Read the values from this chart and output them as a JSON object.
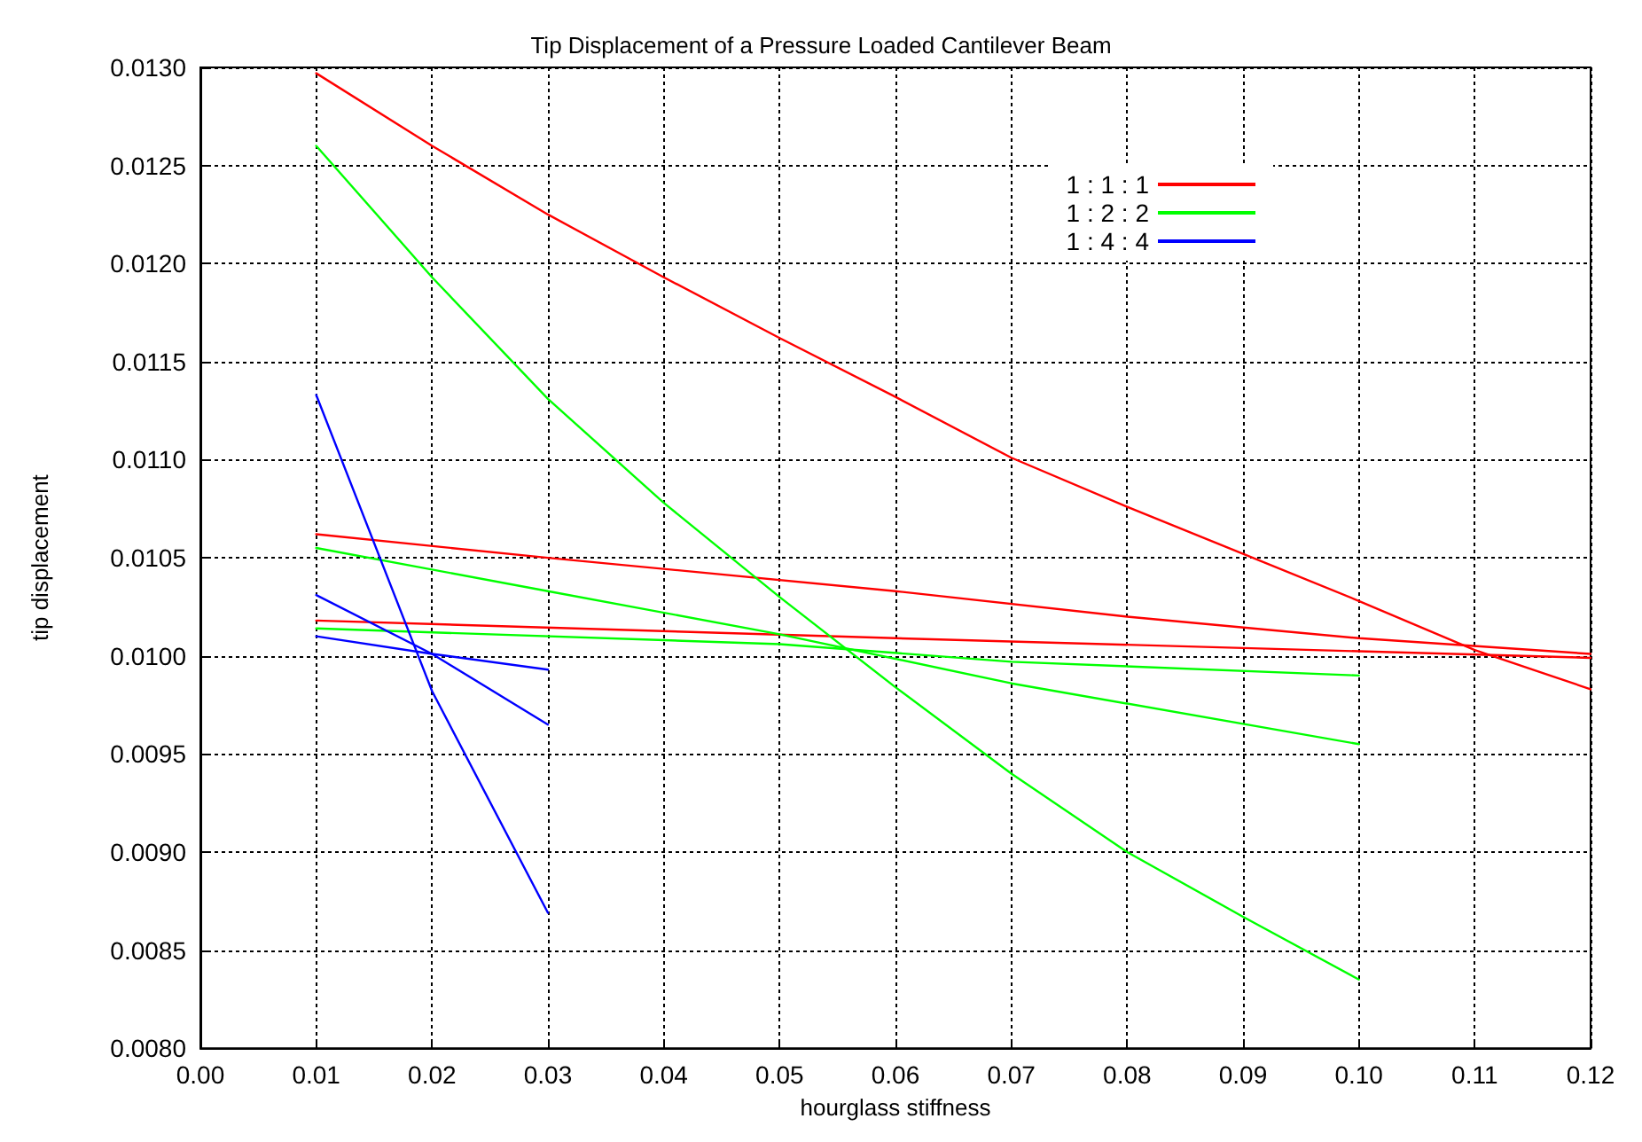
{
  "chart_data": {
    "type": "line",
    "title": "Tip Displacement of a Pressure Loaded Cantilever Beam",
    "xlabel": "hourglass stiffness",
    "ylabel": "tip displacement",
    "xlim": [
      0,
      0.12
    ],
    "ylim": [
      0.008,
      0.013
    ],
    "xticks": [
      {
        "value": 0,
        "label": "0.00"
      },
      {
        "value": 0.01,
        "label": "0.01"
      },
      {
        "value": 0.02,
        "label": "0.02"
      },
      {
        "value": 0.03,
        "label": "0.03"
      },
      {
        "value": 0.04,
        "label": "0.04"
      },
      {
        "value": 0.05,
        "label": "0.05"
      },
      {
        "value": 0.06,
        "label": "0.06"
      },
      {
        "value": 0.07,
        "label": "0.07"
      },
      {
        "value": 0.08,
        "label": "0.08"
      },
      {
        "value": 0.09,
        "label": "0.09"
      },
      {
        "value": 0.1,
        "label": "0.10"
      },
      {
        "value": 0.11,
        "label": "0.11"
      },
      {
        "value": 0.12,
        "label": "0.12"
      }
    ],
    "yticks": [
      {
        "value": 0.008,
        "label": "0.0080"
      },
      {
        "value": 0.0085,
        "label": "0.0085"
      },
      {
        "value": 0.009,
        "label": "0.0090"
      },
      {
        "value": 0.0095,
        "label": "0.0095"
      },
      {
        "value": 0.01,
        "label": "0.0100"
      },
      {
        "value": 0.0105,
        "label": "0.0105"
      },
      {
        "value": 0.011,
        "label": "0.0110"
      },
      {
        "value": 0.0115,
        "label": "0.0115"
      },
      {
        "value": 0.012,
        "label": "0.0120"
      },
      {
        "value": 0.0125,
        "label": "0.0125"
      },
      {
        "value": 0.013,
        "label": "0.0130"
      }
    ],
    "grid": true,
    "legend": "top right",
    "marker": "none",
    "line_style": "solid",
    "series": [
      {
        "name": "1 : 1 : 1",
        "color": "#ff0000",
        "x": [
          0.01,
          0.02,
          0.03,
          0.04,
          0.05,
          0.06,
          0.07,
          0.08,
          0.09,
          0.1,
          0.11,
          0.12
        ],
        "values": [
          0.01297,
          0.0126,
          0.01225,
          0.01193,
          0.01162,
          0.01132,
          0.01101,
          0.01076,
          0.01052,
          0.01028,
          0.01003,
          0.00983
        ]
      },
      {
        "color": "#ff0000",
        "x": [
          0.01,
          0.03,
          0.06,
          0.08,
          0.1,
          0.12
        ],
        "values": [
          0.01062,
          0.0105,
          0.01033,
          0.0102,
          0.01009,
          0.01001
        ]
      },
      {
        "color": "#ff0000",
        "x": [
          0.01,
          0.06,
          0.12
        ],
        "values": [
          0.01018,
          0.01009,
          0.00999
        ]
      },
      {
        "name": "1 : 2 : 2",
        "color": "#00ff00",
        "x": [
          0.01,
          0.02,
          0.03,
          0.04,
          0.05,
          0.06,
          0.07,
          0.08,
          0.09,
          0.1
        ],
        "values": [
          0.0126,
          0.01193,
          0.01131,
          0.01078,
          0.0103,
          0.00984,
          0.0094,
          0.009,
          0.00867,
          0.00835
        ]
      },
      {
        "color": "#00ff00",
        "x": [
          0.01,
          0.03,
          0.05,
          0.07,
          0.1
        ],
        "values": [
          0.01055,
          0.01033,
          0.01011,
          0.00986,
          0.00955
        ]
      },
      {
        "color": "#00ff00",
        "x": [
          0.01,
          0.05,
          0.07,
          0.1
        ],
        "values": [
          0.01014,
          0.01006,
          0.00997,
          0.0099
        ]
      },
      {
        "name": "1 : 4 : 4",
        "color": "#0000ff",
        "x": [
          0.01,
          0.02,
          0.03
        ],
        "values": [
          0.01133,
          0.00982,
          0.00869
        ]
      },
      {
        "color": "#0000ff",
        "x": [
          0.01,
          0.02,
          0.03
        ],
        "values": [
          0.01031,
          0.01001,
          0.00965
        ]
      },
      {
        "color": "#0000ff",
        "x": [
          0.01,
          0.02,
          0.03
        ],
        "values": [
          0.0101,
          0.01001,
          0.00993
        ]
      }
    ]
  }
}
